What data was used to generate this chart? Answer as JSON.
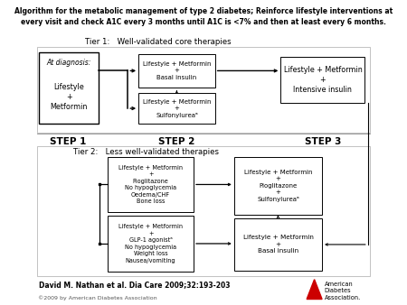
{
  "title_line1": "Algorithm for the metabolic management of type 2 diabetes; Reinforce lifestyle interventions at",
  "title_line2": "every visit and check A1C every 3 months until A1C is <7% and then at least every 6 months.",
  "tier1_label": "Tier 1:   Well-validated core therapies",
  "tier2_label": "Tier 2:   Less well-validated therapies",
  "step1_label": "STEP 1",
  "step2_label": "STEP 2",
  "step3_label": "STEP 3",
  "box_diagnosis_line1": "At diagnosis:",
  "box_diagnosis_line2": "Lifestyle\n+\nMetformin",
  "box_basal_t1": "Lifestyle + Metformin\n+\nBasal insulin",
  "box_sulfonyl_t1": "Lifestyle + Metformin\n+\nSulfonylureaᵃ",
  "box_intensive": "Lifestyle + Metformin\n+\nIntensive insulin",
  "box_pio_t2": "Lifestyle + Metformin\n+\nPioglitazone\nNo hypoglycemia\nOedema/CHF\nBone loss",
  "box_glp1_t2": "Lifestyle + Metformin\n+\nGLP-1 agonistᵃ\nNo hypoglycemia\nWeight loss\nNausea/vomiting",
  "box_pio_sulfonyl": "Lifestyle + Metformin\n+\nPioglitazone\n+\nSulfonylureaᵃ",
  "box_basal_t2": "Lifestyle + Metformin\n+\nBasal insulin",
  "citation": "David M. Nathan et al. Dia Care 2009;32:193-203",
  "copyright": "©2009 by American Diabetes Association",
  "bg_color": "#ffffff",
  "box_face": "#ffffff",
  "box_edge": "#000000",
  "text_color": "#000000",
  "sep_color": "#888888",
  "arrow_color": "#000000"
}
